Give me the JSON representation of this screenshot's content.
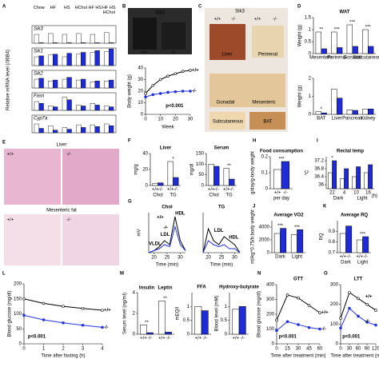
{
  "chart_data": [
    {
      "type": "bar-rows",
      "letter": "A",
      "ylabel": "Relative mRNA level (/36B4)",
      "columns": [
        "Chow",
        "HF",
        "HS",
        "HChol",
        "HF HS",
        "HF HS HChol"
      ],
      "ylim": [
        0,
        2
      ],
      "rows": [
        {
          "name": "Sik3",
          "series": [
            {
              "color": "#ffffff",
              "values": [
                1,
                1.1,
                1,
                1.1,
                1,
                1.2
              ]
            },
            {
              "color": "#1f2bd6",
              "values": [
                0.05,
                0.05,
                0.05,
                0.05,
                0.05,
                0.05
              ]
            }
          ]
        },
        {
          "name": "Sik1",
          "series": [
            {
              "color": "#ffffff",
              "values": [
                1,
                1.2,
                1,
                1.3,
                1.5,
                1.6
              ]
            },
            {
              "color": "#1f2bd6",
              "values": [
                1.1,
                1.3,
                1.4,
                1.5,
                1.7,
                1.9
              ]
            }
          ]
        },
        {
          "name": "Sik2",
          "series": [
            {
              "color": "#ffffff",
              "values": [
                1,
                0.8,
                1,
                0.9,
                0.7,
                0.8
              ]
            },
            {
              "color": "#1f2bd6",
              "values": [
                1.1,
                0.9,
                1.2,
                1,
                0.8,
                0.9
              ]
            }
          ]
        },
        {
          "name": "Fasn",
          "series": [
            {
              "color": "#ffffff",
              "values": [
                1,
                0.5,
                1.5,
                0.6,
                0.8,
                0.5
              ]
            },
            {
              "color": "#1f2bd6",
              "values": [
                0.8,
                0.4,
                1.2,
                0.5,
                0.6,
                0.4
              ]
            }
          ]
        },
        {
          "name": "Cyp7a",
          "series": [
            {
              "color": "#ffffff",
              "values": [
                1,
                0.8,
                0.6,
                0.9,
                0.9,
                1
              ]
            },
            {
              "color": "#1f2bd6",
              "values": [
                0.5,
                0.3,
                0.4,
                0.6,
                0.7,
                0.8
              ]
            }
          ]
        }
      ]
    },
    {
      "type": "photo",
      "letter": "B",
      "labels": [
        "Sik3",
        "+/+",
        "-/-"
      ]
    },
    {
      "type": "line",
      "ylabel": "Body weight (g)",
      "xlabel": "Week",
      "x": [
        0,
        5,
        10,
        15,
        20,
        25,
        30
      ],
      "xlim": [
        0,
        30
      ],
      "xticks": [
        0,
        10,
        20,
        30
      ],
      "ylim": [
        0,
        40
      ],
      "yticks": [
        0,
        10,
        20,
        30,
        40
      ],
      "series": [
        {
          "name": "+/+",
          "color": "#000000",
          "values": [
            18,
            25,
            30,
            33,
            35,
            37,
            38
          ]
        },
        {
          "name": "-/-",
          "color": "#2233dd",
          "values": [
            15,
            17,
            18,
            19,
            19.5,
            20,
            20
          ]
        }
      ],
      "annotations": [
        "p<0.001"
      ]
    },
    {
      "type": "photo",
      "letter": "C",
      "labels": [
        "Sik3",
        "+/+",
        "-/-",
        "+/+",
        "-/-",
        "Liver",
        "Perirenal",
        "Gonadal",
        "Mesenteric",
        "Subcutaneous",
        "BAT"
      ]
    },
    {
      "type": "bar",
      "letter": "D",
      "title": "WAT",
      "ylabel": "Weight (g)",
      "categories": [
        "Mesenteric",
        "Perirenal",
        "Gonadal",
        "Subcutaneous"
      ],
      "ylim": [
        0,
        1.5
      ],
      "yticks": [
        0,
        0.5,
        1,
        1.5
      ],
      "series": [
        {
          "color": "#ffffff",
          "values": [
            0.9,
            0.9,
            1.2,
            1
          ]
        },
        {
          "color": "#1f2bd6",
          "values": [
            0.2,
            0.25,
            0.3,
            0.3
          ]
        }
      ],
      "annotations": [
        "**",
        "***",
        "***",
        "***"
      ]
    },
    {
      "type": "bar",
      "ylabel": "Weight (g)",
      "categories": [
        "BAT",
        "Liver",
        "Pancreas",
        "Kidney"
      ],
      "ylim": [
        0,
        2
      ],
      "yticks": [
        0,
        1,
        2
      ],
      "series": [
        {
          "color": "#ffffff",
          "values": [
            0.15,
            1.4,
            0.25,
            0.3
          ]
        },
        {
          "color": "#1f2bd6",
          "values": [
            0.08,
            0.9,
            0.22,
            0.3
          ]
        }
      ],
      "annotations": [
        "*"
      ]
    },
    {
      "type": "photo",
      "letter": "E",
      "labels": [
        "Liver",
        "+/+",
        "-/-",
        "Mesenteric fat",
        "+/+",
        "-/-"
      ]
    },
    {
      "type": "bar",
      "letter": "F",
      "title": "Liver",
      "ylabel": "mg/g",
      "categories": [
        "Chol",
        "TG"
      ],
      "bar_labels": [
        "+/+",
        "-/-"
      ],
      "ylim": [
        0,
        40
      ],
      "yticks": [
        0,
        20,
        40
      ],
      "series": [
        {
          "color": "#ffffff",
          "values": [
            2.8,
            30
          ]
        },
        {
          "color": "#1f2bd6",
          "values": [
            3.3,
            10
          ]
        }
      ],
      "annotations": [
        "*"
      ]
    },
    {
      "type": "bar",
      "title": "Serum",
      "ylabel": "mg/dl",
      "categories": [
        "Chol",
        "TG"
      ],
      "bar_labels": [
        "+/+",
        "-/-"
      ],
      "ylim": [
        0,
        150
      ],
      "yticks": [
        0,
        50,
        100,
        150
      ],
      "series": [
        {
          "color": "#ffffff",
          "values": [
            100,
            80
          ]
        },
        {
          "color": "#1f2bd6",
          "values": [
            90,
            30
          ]
        }
      ],
      "annotations": [
        "**"
      ]
    },
    {
      "type": "line",
      "letter": "G",
      "title": "Chol",
      "ylabel": "mV",
      "xlabel": "Time (min)",
      "x": [
        18,
        20,
        22,
        24,
        26,
        28,
        30,
        32
      ],
      "xlim": [
        18,
        32
      ],
      "xticks": [
        20,
        25,
        30
      ],
      "ylim": [
        0,
        20
      ],
      "series": [
        {
          "name": "+/+",
          "color": "#000000",
          "values": [
            0,
            1,
            3,
            6,
            4,
            18,
            6,
            1
          ]
        },
        {
          "name": "-/-",
          "color": "#2233dd",
          "values": [
            0,
            1,
            2,
            4,
            3,
            13,
            4,
            1
          ]
        }
      ],
      "annotations": [
        "HDL",
        "LDL",
        "VLDL"
      ]
    },
    {
      "type": "line",
      "title": "TG",
      "xlabel": "Time (min)",
      "x": [
        18,
        20,
        22,
        24,
        26,
        28,
        30,
        32
      ],
      "xlim": [
        18,
        32
      ],
      "xticks": [
        20,
        25,
        30
      ],
      "ylim": [
        0,
        10
      ],
      "series": [
        {
          "color": "#000000",
          "values": [
            0,
            6,
            3,
            2,
            4,
            3,
            2,
            0
          ]
        },
        {
          "color": "#2233dd",
          "values": [
            0,
            3,
            2,
            1.5,
            2,
            1,
            1,
            0
          ]
        }
      ],
      "annotations": [
        "LDL",
        "HDL"
      ]
    },
    {
      "type": "bar",
      "letter": "H",
      "title": "Food consumption",
      "ylabel": "g/day/g-body weight",
      "categories": [
        "per day"
      ],
      "bar_labels": [
        "+/+",
        "-/-"
      ],
      "ylim": [
        0,
        0.2
      ],
      "yticks": [
        0,
        0.1,
        0.2
      ],
      "series": [
        {
          "color": "#ffffff",
          "values": [
            0.12
          ]
        },
        {
          "color": "#1f2bd6",
          "values": [
            0.17
          ]
        }
      ],
      "annotations": [
        "***"
      ]
    },
    {
      "type": "bar",
      "letter": "I",
      "title": "Rectal temp",
      "ylabel": "°C",
      "xlabel": "(h)",
      "categories": [
        "22",
        "4",
        "10",
        "16"
      ],
      "groups": [
        "Dark",
        "Light"
      ],
      "ylim": [
        35.8,
        37.4
      ],
      "yticks": [
        36,
        36.4,
        36.8,
        37.2
      ],
      "series": [
        {
          "color": "#ffffff",
          "values": [
            36.6,
            36.3,
            36.4,
            36.6
          ]
        },
        {
          "color": "#1f2bd6",
          "values": [
            37.2,
            36.8,
            36.9,
            37
          ]
        }
      ],
      "annotations": [
        "*"
      ]
    },
    {
      "type": "bar",
      "letter": "J",
      "title": "Average VO2",
      "ylabel": "ml/kg^0.75/h body weight",
      "categories": [
        "Dark",
        "Light"
      ],
      "ylim": [
        0,
        5000
      ],
      "yticks": [
        0,
        2000,
        4000
      ],
      "series": [
        {
          "color": "#ffffff",
          "values": [
            3000,
            2800
          ]
        },
        {
          "color": "#1f2bd6",
          "values": [
            3800,
            3600
          ]
        }
      ],
      "annotations": [
        "***",
        "***"
      ]
    },
    {
      "type": "bar",
      "letter": "K",
      "title": "Average RQ",
      "ylabel": "RQ",
      "categories": [
        "Dark",
        "Light"
      ],
      "bar_labels": [
        "+/+",
        "-/-"
      ],
      "ylim": [
        0.7,
        1
      ],
      "yticks": [
        0.7,
        0.8,
        0.9
      ],
      "series": [
        {
          "color": "#ffffff",
          "values": [
            0.88,
            0.82
          ]
        },
        {
          "color": "#1f2bd6",
          "values": [
            0.95,
            0.85
          ]
        }
      ],
      "annotations": [
        "***"
      ]
    },
    {
      "type": "line",
      "letter": "L",
      "ylabel": "Blood glucose (mg/dl)",
      "xlabel": "Time after fasting (h)",
      "x": [
        0,
        1,
        2,
        3,
        4
      ],
      "xlim": [
        0,
        4
      ],
      "xticks": [
        0,
        1,
        2,
        3,
        4
      ],
      "ylim": [
        0,
        200
      ],
      "yticks": [
        0,
        50,
        100,
        150,
        200
      ],
      "series": [
        {
          "name": "+/+",
          "color": "#000000",
          "values": [
            150,
            135,
            125,
            118,
            112
          ]
        },
        {
          "name": "-/-",
          "color": "#2233dd",
          "values": [
            95,
            80,
            70,
            62,
            55
          ]
        }
      ],
      "annotations": [
        "p<0.001"
      ]
    },
    {
      "type": "bar",
      "letter": "M",
      "ylabel": "Serum level (ng/ml)",
      "categories": [
        "Insulin",
        "Leptin"
      ],
      "bar_labels": [
        "+/+",
        "-/-"
      ],
      "ylim": [
        0,
        4
      ],
      "yticks": [
        0,
        2,
        4
      ],
      "series": [
        {
          "color": "#ffffff",
          "values": [
            0.9,
            3.2
          ]
        },
        {
          "color": "#1f2bd6",
          "values": [
            0.15,
            0.2
          ]
        }
      ],
      "annotations": [
        "**",
        "**"
      ]
    },
    {
      "type": "bar",
      "title": "FFA",
      "ylabel": "mEQ/l",
      "bar_labels": [
        "+/+",
        "-/-"
      ],
      "ylim": [
        0,
        1.5
      ],
      "yticks": [
        0,
        0.5,
        1
      ],
      "series": [
        {
          "color": "#ffffff",
          "values": [
            1
          ]
        },
        {
          "color": "#1f2bd6",
          "values": [
            0.85
          ]
        }
      ]
    },
    {
      "type": "bar",
      "title": "Hydroxy-butyrate",
      "ylabel": "Blood level (mM)",
      "bar_labels": [
        "+/+",
        "-/-"
      ],
      "ylim": [
        0,
        1.5
      ],
      "yticks": [
        0,
        0.5,
        1
      ],
      "series": [
        {
          "color": "#ffffff",
          "values": [
            0.9
          ]
        },
        {
          "color": "#1f2bd6",
          "values": [
            1
          ]
        }
      ]
    },
    {
      "type": "line",
      "letter": "N",
      "title": "GTT",
      "ylabel": "Blood glucose (mg/dl)",
      "xlabel": "Time after treatment (min)",
      "x": [
        0,
        15,
        30,
        45,
        60
      ],
      "xlim": [
        0,
        60
      ],
      "xticks": [
        0,
        15,
        30,
        45,
        60
      ],
      "ylim": [
        0,
        400
      ],
      "yticks": [
        0,
        100,
        200,
        300,
        400
      ],
      "series": [
        {
          "name": "+/+",
          "color": "#000000",
          "values": [
            160,
            330,
            310,
            260,
            210
          ]
        },
        {
          "name": "-/-",
          "color": "#2233dd",
          "values": [
            90,
            150,
            130,
            110,
            100
          ]
        }
      ],
      "annotations": [
        "p<0.001"
      ]
    },
    {
      "type": "line",
      "letter": "O",
      "title": "LTT",
      "xlabel": "Time after treatment (min)",
      "x": [
        0,
        30,
        60,
        90,
        120
      ],
      "xlim": [
        0,
        120
      ],
      "xticks": [
        0,
        30,
        60,
        90,
        120
      ],
      "ylim": [
        0,
        300
      ],
      "yticks": [
        0,
        100,
        200,
        300
      ],
      "series": [
        {
          "name": "+/+",
          "color": "#000000",
          "values": [
            130,
            260,
            230,
            200,
            170
          ]
        },
        {
          "name": "-/-",
          "color": "#2233dd",
          "values": [
            80,
            180,
            140,
            110,
            95
          ]
        }
      ],
      "annotations": [
        "p<0.001"
      ]
    }
  ]
}
